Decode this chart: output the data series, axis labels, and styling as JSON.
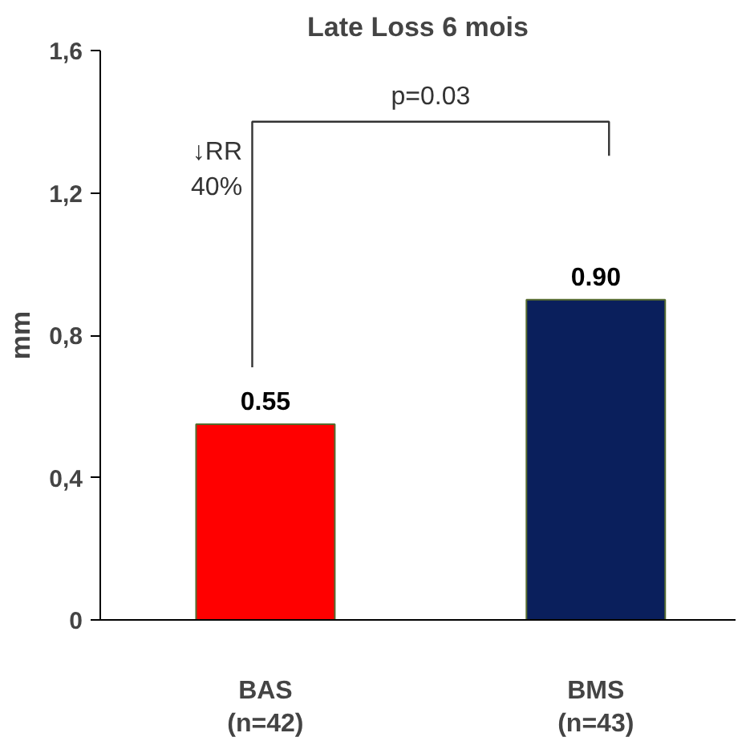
{
  "chart_data": {
    "type": "bar",
    "title": "Late Loss 6 mois",
    "ylabel": "mm",
    "categories": [
      "BAS\n(n=42)",
      "BMS\n(n=43)"
    ],
    "values": [
      0.55,
      0.9
    ],
    "colors": [
      "#ff0000",
      "#0a1f5c"
    ],
    "value_labels": [
      "0.55",
      "0.90"
    ],
    "ylim": [
      0,
      1.6
    ],
    "yticks": [
      0,
      {
        "value": 0.4,
        "label": "0,4"
      },
      {
        "value": 0.8,
        "label": "0,8"
      },
      {
        "value": 1.2,
        "label": "1,2"
      },
      {
        "value": 1.6,
        "label": "1,6"
      }
    ],
    "annotations": [
      "p=0.03",
      "↓RR\n40%"
    ],
    "grid": false
  }
}
